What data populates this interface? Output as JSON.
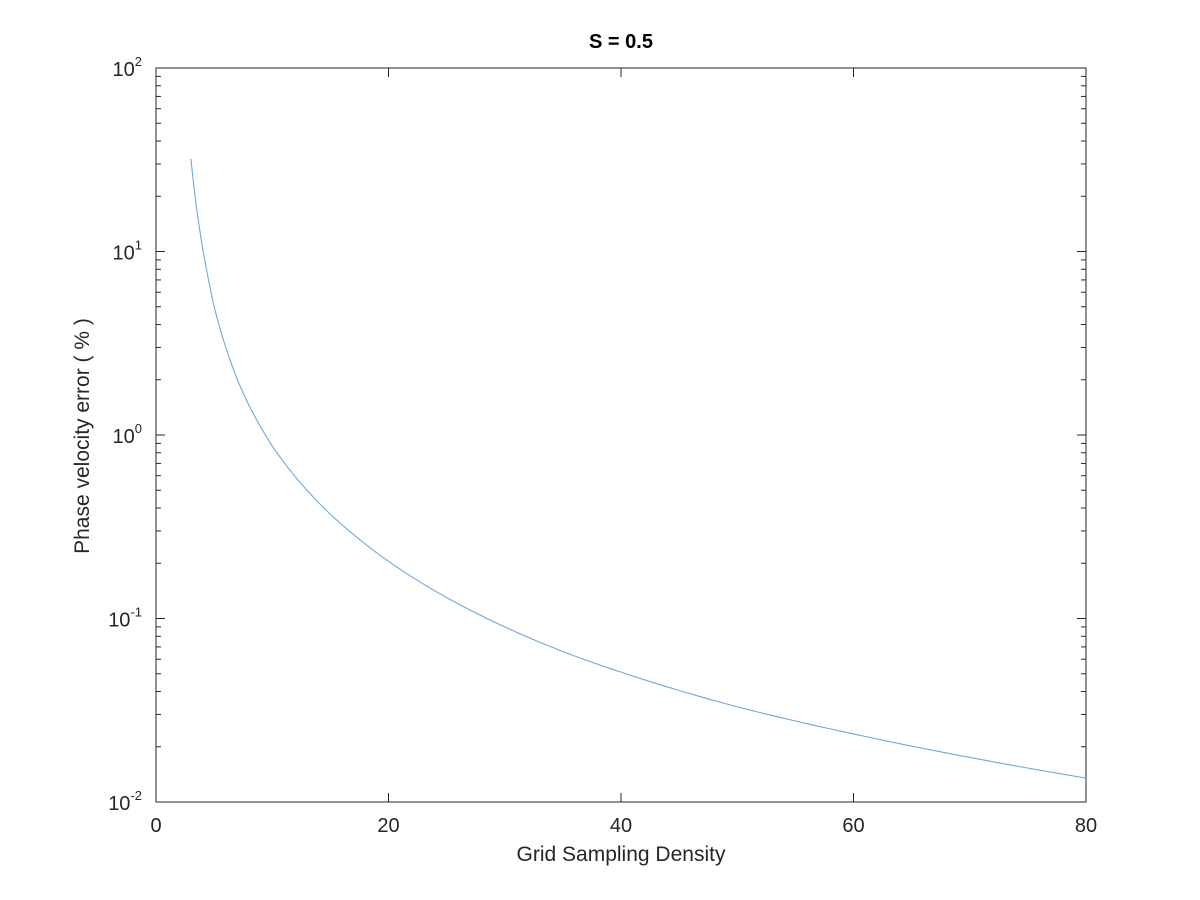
{
  "chart_data": {
    "type": "line",
    "title": "S = 0.5",
    "xlabel": "Grid Sampling Density",
    "ylabel": "Phase velocity error ( % )",
    "xlim": [
      0,
      80
    ],
    "ylim": [
      0.01,
      100
    ],
    "yscale": "log",
    "xticks": [
      0,
      20,
      40,
      60,
      80
    ],
    "xtick_labels": [
      "0",
      "20",
      "40",
      "60",
      "80"
    ],
    "yticks": [
      0.01,
      0.1,
      1,
      10,
      100
    ],
    "ytick_labels": [
      {
        "base": "10",
        "exp": "-2"
      },
      {
        "base": "10",
        "exp": "-1"
      },
      {
        "base": "10",
        "exp": "0"
      },
      {
        "base": "10",
        "exp": "1"
      },
      {
        "base": "10",
        "exp": "2"
      }
    ],
    "grid": false,
    "box": true,
    "series": [
      {
        "color": "#6fa8dc",
        "x": [
          3,
          3.5,
          4,
          5,
          6,
          7,
          8,
          10,
          12,
          15,
          20,
          25,
          30,
          35,
          40,
          50,
          60,
          70,
          80
        ],
        "y": [
          32,
          17,
          10.5,
          5.0,
          3.0,
          2.0,
          1.45,
          0.87,
          0.59,
          0.37,
          0.205,
          0.13,
          0.09,
          0.066,
          0.051,
          0.033,
          0.0235,
          0.0175,
          0.0135
        ]
      }
    ]
  }
}
